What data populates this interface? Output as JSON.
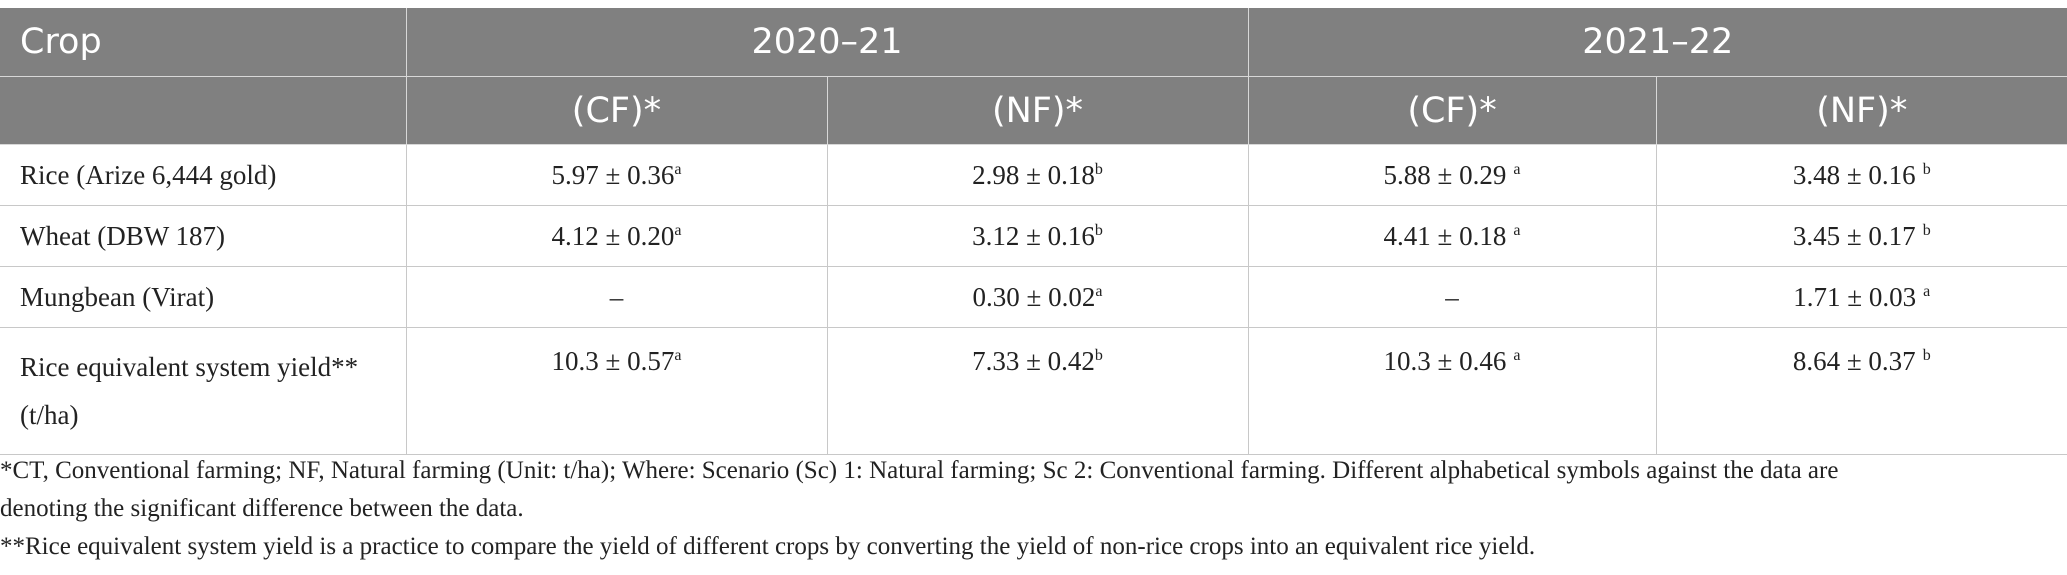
{
  "table": {
    "header": {
      "crop_label": "Crop",
      "year1": "2020–21",
      "year2": "2021–22",
      "sub": [
        "(CF)*",
        "(NF)*",
        "(CF)*",
        "(NF)*"
      ]
    },
    "rows": [
      {
        "crop": "Rice (Arize 6,444 gold)",
        "cells": [
          {
            "value": "5.97 ± 0.36",
            "sig": "a"
          },
          {
            "value": "2.98 ± 0.18",
            "sig": "b"
          },
          {
            "value": "5.88 ± 0.29",
            "sig": "a"
          },
          {
            "value": "3.48 ± 0.16",
            "sig": "b"
          }
        ]
      },
      {
        "crop": "Wheat (DBW 187)",
        "cells": [
          {
            "value": "4.12 ± 0.20",
            "sig": "a"
          },
          {
            "value": "3.12 ± 0.16",
            "sig": "b"
          },
          {
            "value": "4.41 ± 0.18",
            "sig": "a"
          },
          {
            "value": "3.45 ± 0.17",
            "sig": "b"
          }
        ]
      },
      {
        "crop": "Mungbean (Virat)",
        "cells": [
          {
            "value": "–",
            "sig": ""
          },
          {
            "value": "0.30 ± 0.02",
            "sig": "a"
          },
          {
            "value": "–",
            "sig": ""
          },
          {
            "value": "1.71 ± 0.03",
            "sig": "a"
          }
        ]
      },
      {
        "crop_line1": "Rice equivalent system yield**",
        "crop_line2": "(t/ha)",
        "cells": [
          {
            "value": "10.3 ± 0.57",
            "sig": "a"
          },
          {
            "value": "7.33 ± 0.42",
            "sig": "b"
          },
          {
            "value": "10.3 ± 0.46",
            "sig": "a"
          },
          {
            "value": "8.64 ± 0.37",
            "sig": "b"
          }
        ]
      }
    ]
  },
  "footnotes": {
    "note1_line1": "*CT, Conventional farming; NF, Natural farming (Unit: t/ha); Where: Scenario (Sc) 1: Natural farming; Sc 2: Conventional farming. Different alphabetical symbols against the data are",
    "note1_line2": "denoting the significant difference between the data.",
    "note2": "**Rice equivalent system yield is a practice to compare the yield of different crops by converting the yield of non-rice crops into an equivalent rice yield."
  }
}
